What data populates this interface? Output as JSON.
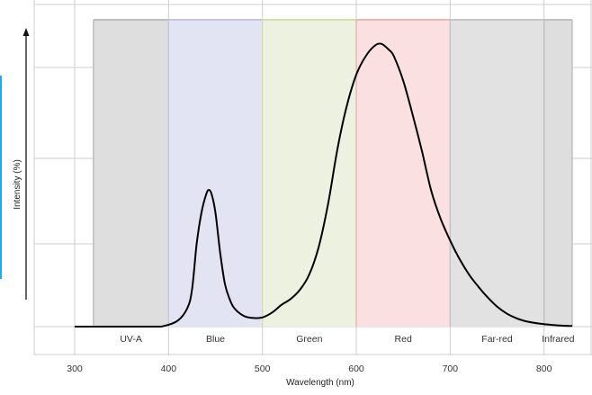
{
  "colors": {
    "accent_bar": "#29a8e0",
    "grid": "#cfcfcf",
    "curve": "#000000",
    "uv_band": "#dedede",
    "blue_band": "#e2e4f3",
    "green_band": "#edf1df",
    "red_band": "#fae0e0",
    "farred_band": "#e2e2e2",
    "infrared_band": "#dedede"
  },
  "chart_data": {
    "type": "line",
    "xlabel": "Wavelength (nm)",
    "ylabel": "Intensity (%)",
    "xlim": [
      300,
      830
    ],
    "x_ticks": [
      300,
      400,
      500,
      600,
      700,
      800
    ],
    "grid": true,
    "bands": [
      {
        "label": "UV-A",
        "start": 320,
        "end": 400,
        "color": "#dedede",
        "edge": "#bdbdbd"
      },
      {
        "label": "Blue",
        "start": 400,
        "end": 500,
        "color": "#e2e4f3",
        "edge": "#c3c5e3"
      },
      {
        "label": "Green",
        "start": 500,
        "end": 600,
        "color": "#edf1df",
        "edge": "#d2e2a6"
      },
      {
        "label": "Red",
        "start": 600,
        "end": 700,
        "color": "#fae0e0",
        "edge": "#efb4b4"
      },
      {
        "label": "Far-red",
        "start": 700,
        "end": 800,
        "color": "#e2e2e2",
        "edge": "#c4c4c4"
      },
      {
        "label": "Infrared",
        "start": 800,
        "end": 830,
        "color": "#dedede",
        "edge": "#c0c0c0"
      }
    ],
    "series": [
      {
        "x": [
          300,
          380,
          395,
          410,
          420,
          425,
          430,
          435,
          440,
          443,
          446,
          450,
          455,
          460,
          465,
          470,
          480,
          490,
          500,
          510,
          520,
          530,
          540,
          550,
          560,
          570,
          580,
          590,
          600,
          610,
          620,
          627,
          635,
          640,
          650,
          660,
          670,
          680,
          690,
          700,
          710,
          720,
          730,
          740,
          750,
          760,
          770,
          780,
          790,
          800,
          810,
          820,
          830
        ],
        "y": [
          0,
          0,
          0.2,
          2,
          6,
          12,
          27,
          37,
          43,
          44.5,
          43,
          37,
          24,
          14,
          9,
          6,
          3.5,
          2.8,
          3,
          4.5,
          7,
          9,
          12,
          17,
          26,
          40,
          58,
          72,
          82,
          88,
          91.5,
          92,
          90,
          88,
          80,
          69,
          57,
          44,
          35,
          28,
          22,
          17,
          13,
          9.5,
          6.5,
          4.3,
          2.8,
          1.8,
          1.2,
          0.8,
          0.5,
          0.3,
          0.2
        ]
      }
    ]
  }
}
